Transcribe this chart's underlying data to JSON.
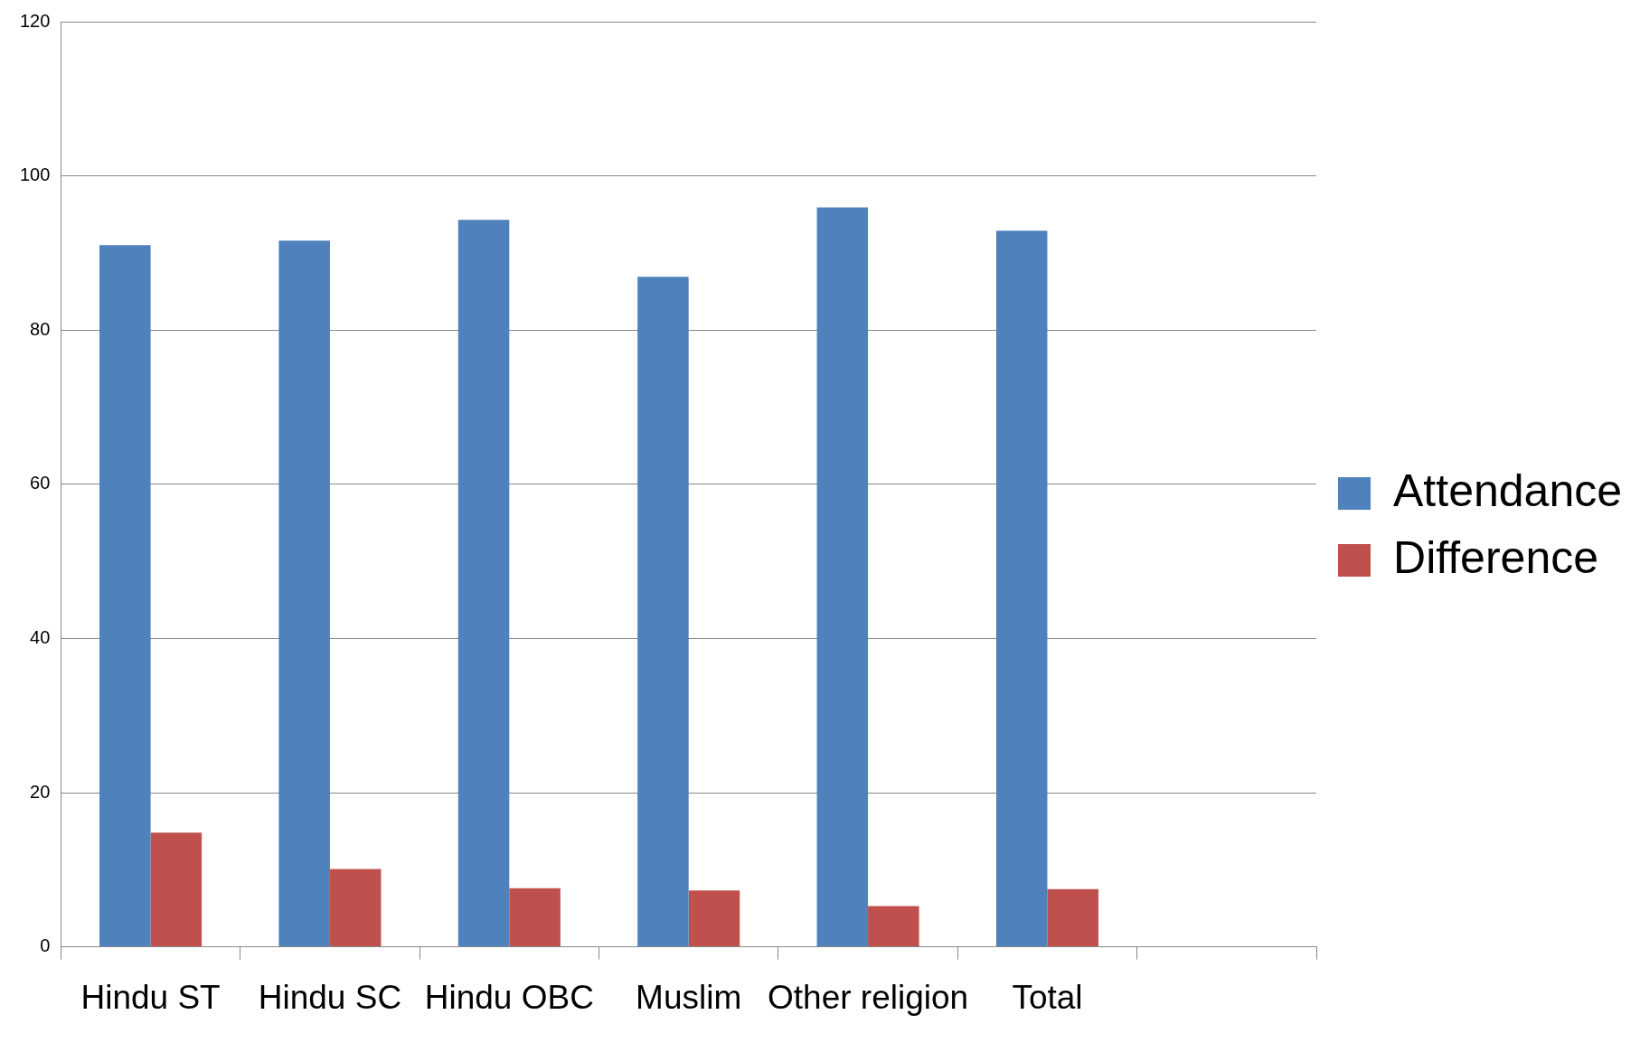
{
  "chart_data": {
    "type": "bar",
    "categories": [
      "Hindu ST",
      "Hindu SC",
      "Hindu OBC",
      "Muslim",
      "Other religion",
      "Total",
      null
    ],
    "series": [
      {
        "name": "Attendance",
        "color": "#4f81bd",
        "values": [
          91,
          91.6,
          94.3,
          86.9,
          95.9,
          92.9,
          null
        ]
      },
      {
        "name": "Difference",
        "color": "#c0504d",
        "values": [
          14.8,
          10.1,
          7.6,
          7.3,
          5.3,
          7.5,
          null
        ]
      }
    ],
    "ylim": [
      0,
      120
    ],
    "yticks": [
      0,
      20,
      40,
      60,
      80,
      100,
      120
    ],
    "grid": "y",
    "legend": "right"
  }
}
